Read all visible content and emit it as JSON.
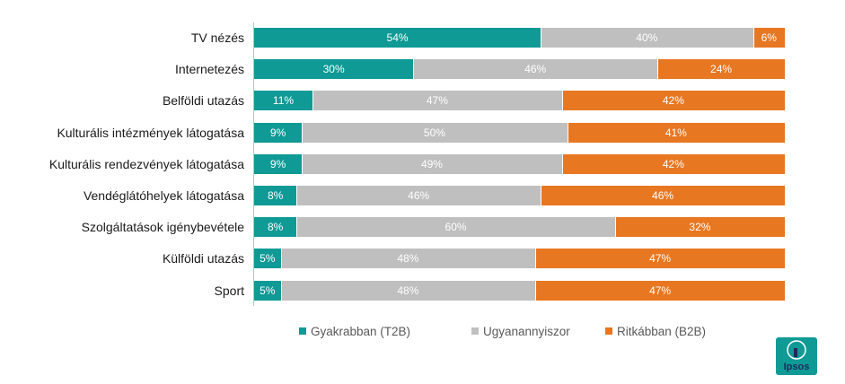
{
  "chart_data": {
    "type": "bar",
    "orientation": "horizontal",
    "stacked": true,
    "percent": true,
    "categories": [
      "TV nézés",
      "Internetezés",
      "Belföldi utazás",
      "Kulturális intézmények látogatása",
      "Kulturális rendezvények látogatása",
      "Vendéglátóhelyek látogatása",
      "Szolgáltatások igénybevétele",
      "Külföldi utazás",
      "Sport"
    ],
    "series": [
      {
        "name": "Gyakrabban (T2B)",
        "color": "#0f9a96",
        "values": [
          54,
          30,
          11,
          9,
          9,
          8,
          8,
          5,
          5
        ],
        "labels": [
          "54%",
          "30%",
          "11%",
          "9%",
          "9%",
          "8%",
          "8%",
          "5%",
          "5%"
        ]
      },
      {
        "name": "Ugyanannyiszor",
        "color": "#bfbfbf",
        "values": [
          40,
          46,
          47,
          50,
          49,
          46,
          60,
          48,
          48
        ],
        "labels": [
          "40%",
          "46%",
          "47%",
          "50%",
          "49%",
          "46%",
          "60%",
          "48%",
          "48%"
        ]
      },
      {
        "name": "Ritkábban (B2B)",
        "color": "#e87722",
        "values": [
          6,
          24,
          42,
          41,
          42,
          46,
          32,
          47,
          47
        ],
        "labels": [
          "6%",
          "24%",
          "42%",
          "41%",
          "42%",
          "46%",
          "32%",
          "47%",
          "47%"
        ]
      }
    ],
    "xlim": [
      0,
      100
    ],
    "grid": false,
    "legend_position": "bottom"
  },
  "logo": {
    "text": "Ipsos",
    "color": "#0f9a96"
  }
}
